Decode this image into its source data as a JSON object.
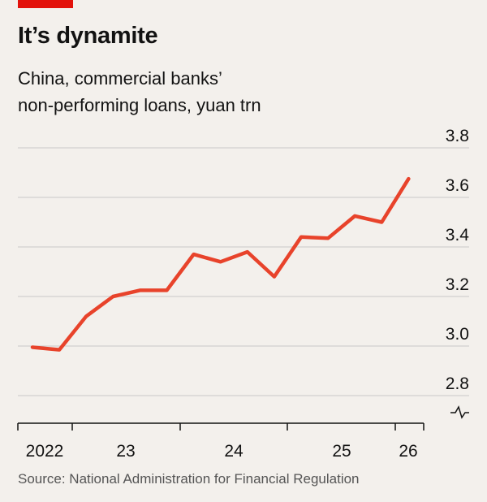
{
  "header": {
    "title": "It’s dynamite",
    "subtitle": "China, commercial banks’\nnon-performing loans, yuan trn"
  },
  "footer": {
    "source": "Source: National Administration for Financial Regulation"
  },
  "colors": {
    "accent": "#e3120b",
    "line": "#e8432b",
    "grid": "#c8c8c8",
    "background": "#f3f0ec"
  },
  "chart_data": {
    "type": "line",
    "title": "It’s dynamite",
    "subtitle": "China, commercial banks’ non-performing loans, yuan trn",
    "y_axis": {
      "range": [
        2.8,
        3.8
      ],
      "ticks": [
        "3.8",
        "3.6",
        "3.4",
        "3.2",
        "3.0",
        "2.8"
      ],
      "side": "right",
      "broken_below": true
    },
    "x_axis": {
      "tick_labels": [
        "2022",
        "23",
        "24",
        "25",
        "26"
      ]
    },
    "grid": true,
    "series": [
      {
        "quarters": [
          "2021Q4",
          "2022Q1",
          "2022Q2",
          "2022Q3",
          "2022Q4",
          "2023Q1",
          "2023Q2",
          "2023Q3",
          "2023Q4",
          "2024Q1",
          "2024Q2",
          "2024Q3",
          "2024Q4",
          "2025Q1",
          "2025Q2"
        ],
        "values": [
          2.995,
          2.985,
          3.12,
          3.2,
          3.225,
          3.225,
          3.37,
          3.34,
          3.38,
          3.28,
          3.44,
          3.435,
          3.525,
          3.5,
          3.675
        ]
      }
    ]
  }
}
